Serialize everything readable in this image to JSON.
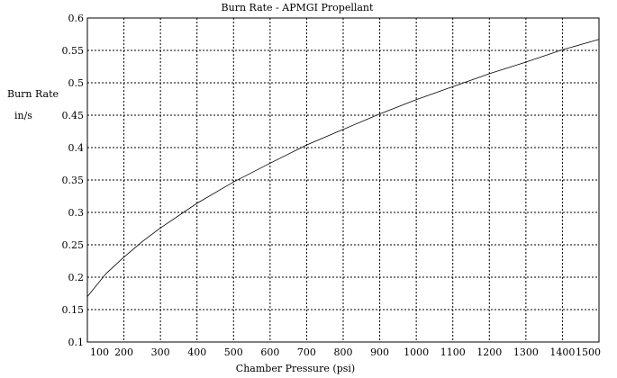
{
  "chart_data": {
    "type": "line",
    "title": "Burn Rate - APMGI Propellant",
    "ylabel_line1": "Burn Rate",
    "ylabel_line2": "in/s",
    "xlabel": "Chamber Pressure (psi)",
    "xlim": [
      100,
      1500
    ],
    "ylim": [
      0.1,
      0.6
    ],
    "x_ticks": [
      100,
      200,
      300,
      400,
      500,
      600,
      700,
      800,
      900,
      1000,
      1100,
      1200,
      1300,
      1400,
      1500
    ],
    "y_ticks": [
      0.1,
      0.15,
      0.2,
      0.25,
      0.3,
      0.35,
      0.4,
      0.45,
      0.5,
      0.55,
      0.6
    ],
    "grid": true,
    "series": [
      {
        "x": [
          100,
          150,
          200,
          250,
          300,
          400,
          500,
          600,
          700,
          800,
          900,
          1000,
          1100,
          1200,
          1300,
          1400,
          1500
        ],
        "y": [
          0.17,
          0.205,
          0.231,
          0.255,
          0.276,
          0.314,
          0.347,
          0.376,
          0.404,
          0.428,
          0.452,
          0.474,
          0.494,
          0.514,
          0.532,
          0.551,
          0.567
        ]
      }
    ]
  }
}
